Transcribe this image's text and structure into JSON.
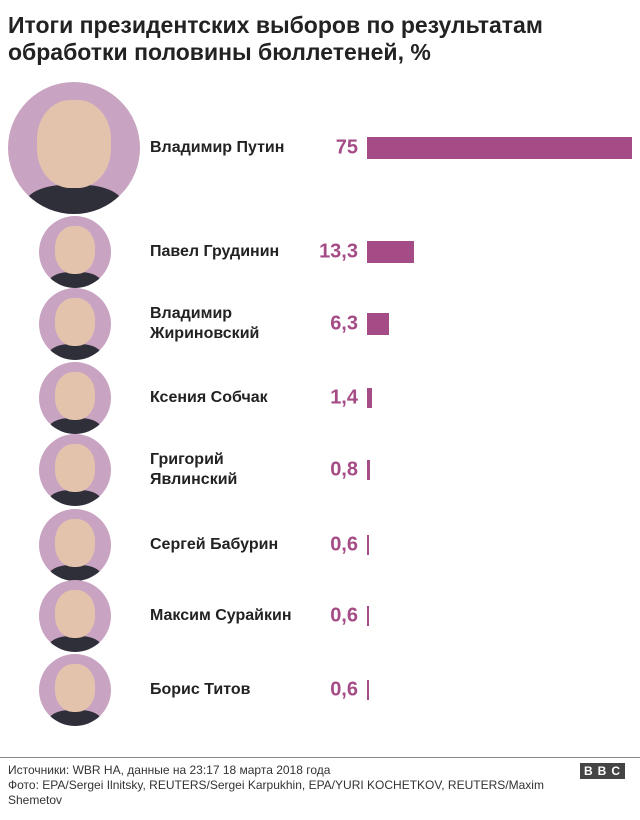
{
  "chart_data": {
    "type": "bar",
    "orientation": "horizontal",
    "title": "Итоги президентских выборов по результатам обработки половины бюллетеней, %",
    "categories": [
      "Владимир Путин",
      "Павел Грудинин",
      "Владимир Жириновский",
      "Ксения Собчак",
      "Григорий Явлинский",
      "Сергей Бабурин",
      "Максим Сурайкин",
      "Борис Титов"
    ],
    "values": [
      75,
      13.3,
      6.3,
      1.4,
      0.8,
      0.6,
      0.6,
      0.6
    ],
    "value_labels": [
      "75",
      "13,3",
      "6,3",
      "1,4",
      "0,8",
      "0,6",
      "0,6",
      "0,6"
    ],
    "color": "#a54c87"
  },
  "footer": {
    "source": "Источники: WBR HA, данные на 23:17 18 марта 2018 года",
    "photo": "Фото: EPA/Sergei Ilnitsky, REUTERS/Sergei Karpukhin, EPA/YURI KOCHETKOV, REUTERS/Maxim Shemetov",
    "logo": "BBC"
  }
}
